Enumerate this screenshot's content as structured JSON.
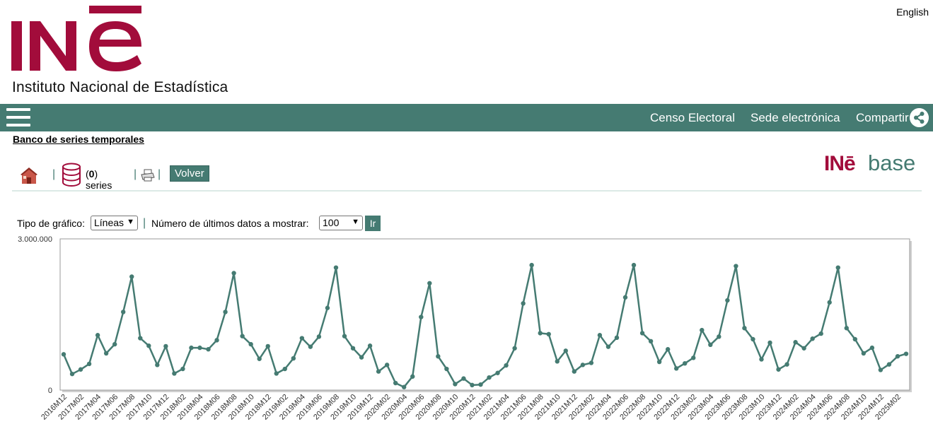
{
  "header": {
    "language_link": "English",
    "logo_text": "INē",
    "institute_name": "Instituto Nacional de Estadística"
  },
  "nav": {
    "items": [
      "Censo Electoral",
      "Sede electrónica",
      "Compartir"
    ]
  },
  "breadcrumb": "Banco de series temporales",
  "toolbar": {
    "series_count": "0",
    "series_suffix": "series",
    "back_button": "Volver",
    "brand_badge_ine": "INē",
    "brand_badge_base": "base"
  },
  "controls": {
    "chart_type_label": "Tipo de gráfico:",
    "chart_type_value": "Líneas",
    "last_data_label": "Número de últimos datos a mostrar:",
    "last_data_value": "100",
    "go_button": "Ir"
  },
  "colors": {
    "brand_green": "#457b72",
    "brand_red": "#a20c3b"
  },
  "chart_data": {
    "type": "line",
    "title": "",
    "xlabel": "",
    "ylabel": "",
    "ylim": [
      0,
      3000000
    ],
    "y_ticks": [
      "0",
      "3.000.000"
    ],
    "x": [
      "2016M12",
      "2017M01",
      "2017M02",
      "2017M03",
      "2017M04",
      "2017M05",
      "2017M06",
      "2017M07",
      "2017M08",
      "2017M09",
      "2017M10",
      "2017M11",
      "2017M12",
      "2018M01",
      "2018M02",
      "2018M03",
      "2018M04",
      "2018M05",
      "2018M06",
      "2018M07",
      "2018M08",
      "2018M09",
      "2018M10",
      "2018M11",
      "2018M12",
      "2019M01",
      "2019M02",
      "2019M03",
      "2019M04",
      "2019M05",
      "2019M06",
      "2019M07",
      "2019M08",
      "2019M09",
      "2019M10",
      "2019M11",
      "2019M12",
      "2020M01",
      "2020M02",
      "2020M03",
      "2020M04",
      "2020M05",
      "2020M06",
      "2020M07",
      "2020M08",
      "2020M09",
      "2020M10",
      "2020M11",
      "2020M12",
      "2021M01",
      "2021M02",
      "2021M03",
      "2021M04",
      "2021M05",
      "2021M06",
      "2021M07",
      "2021M08",
      "2021M09",
      "2021M10",
      "2021M11",
      "2021M12",
      "2022M01",
      "2022M02",
      "2022M03",
      "2022M04",
      "2022M05",
      "2022M06",
      "2022M07",
      "2022M08",
      "2022M09",
      "2022M10",
      "2022M11",
      "2022M12",
      "2023M01",
      "2023M02",
      "2023M03",
      "2023M04",
      "2023M05",
      "2023M06",
      "2023M07",
      "2023M08",
      "2023M09",
      "2023M10",
      "2023M11",
      "2023M12",
      "2024M01",
      "2024M02",
      "2024M03",
      "2024M04",
      "2024M05",
      "2024M06",
      "2024M07",
      "2024M08",
      "2024M09",
      "2024M10",
      "2024M11",
      "2024M12",
      "2025M01",
      "2025M02",
      "2025M03"
    ],
    "x_tick_labels": [
      "2016M12",
      "2017M02",
      "2017M04",
      "2017M06",
      "2017M08",
      "2017M10",
      "2017M12",
      "2018M02",
      "2018M04",
      "2018M06",
      "2018M08",
      "2018M10",
      "2018M12",
      "2019M02",
      "2019M04",
      "2019M06",
      "2019M08",
      "2019M10",
      "2019M12",
      "2020M02",
      "2020M04",
      "2020M06",
      "2020M08",
      "2020M10",
      "2020M12",
      "2021M02",
      "2021M04",
      "2021M06",
      "2021M08",
      "2021M10",
      "2021M12",
      "2022M02",
      "2022M04",
      "2022M06",
      "2022M08",
      "2022M10",
      "2022M12",
      "2023M02",
      "2023M04",
      "2023M06",
      "2023M08",
      "2023M10",
      "2023M12",
      "2024M02",
      "2024M04",
      "2024M06",
      "2024M08",
      "2024M10",
      "2024M12",
      "2025M02"
    ],
    "series": [
      {
        "color": "#457b72",
        "values": [
          710000,
          320000,
          410000,
          520000,
          1090000,
          730000,
          910000,
          1550000,
          2250000,
          1030000,
          880000,
          500000,
          870000,
          330000,
          420000,
          840000,
          840000,
          810000,
          990000,
          1550000,
          2320000,
          1070000,
          910000,
          620000,
          870000,
          330000,
          420000,
          630000,
          1030000,
          860000,
          1060000,
          1630000,
          2430000,
          1070000,
          830000,
          650000,
          880000,
          370000,
          500000,
          140000,
          60000,
          270000,
          1450000,
          2120000,
          670000,
          420000,
          120000,
          230000,
          100000,
          110000,
          250000,
          340000,
          490000,
          830000,
          1720000,
          2480000,
          1130000,
          1110000,
          570000,
          780000,
          370000,
          500000,
          540000,
          1090000,
          860000,
          1040000,
          1840000,
          2480000,
          1130000,
          970000,
          560000,
          810000,
          430000,
          530000,
          640000,
          1190000,
          900000,
          1060000,
          1780000,
          2460000,
          1230000,
          1010000,
          610000,
          940000,
          410000,
          510000,
          950000,
          830000,
          1020000,
          1120000,
          1740000,
          2430000,
          1230000,
          1010000,
          730000,
          840000,
          400000,
          510000,
          670000,
          720000
        ]
      }
    ]
  }
}
